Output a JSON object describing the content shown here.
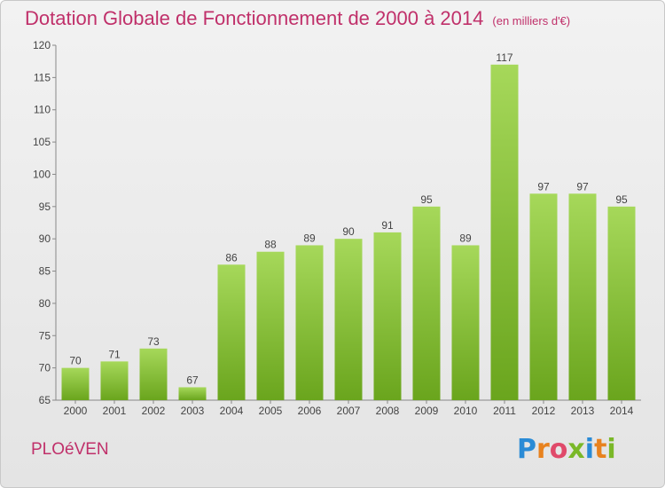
{
  "title": "Dotation Globale de Fonctionnement de 2000 à 2014",
  "subtitle": "(en milliers d'€)",
  "commune": "PLOéVEN",
  "logo": {
    "letters": [
      "P",
      "r",
      "o",
      "x",
      "i",
      "t",
      "i"
    ],
    "colors": [
      "#2a8bd6",
      "#e8821e",
      "#e04a6a",
      "#7ab828",
      "#2a8bd6",
      "#e8821e",
      "#7ab828"
    ]
  },
  "colors": {
    "bar_light": "#a6d85a",
    "bar_dark": "#6aa51d",
    "accent": "#c0306a"
  },
  "chart_data": {
    "type": "bar",
    "categories": [
      "2000",
      "2001",
      "2002",
      "2003",
      "2004",
      "2005",
      "2006",
      "2007",
      "2008",
      "2009",
      "2010",
      "2011",
      "2012",
      "2013",
      "2014"
    ],
    "values": [
      70,
      71,
      73,
      67,
      86,
      88,
      89,
      90,
      91,
      95,
      89,
      117,
      97,
      97,
      95
    ],
    "ylim": [
      65,
      120
    ],
    "yticks": [
      65,
      70,
      75,
      80,
      85,
      90,
      95,
      100,
      105,
      110,
      115,
      120
    ],
    "grid": false
  }
}
